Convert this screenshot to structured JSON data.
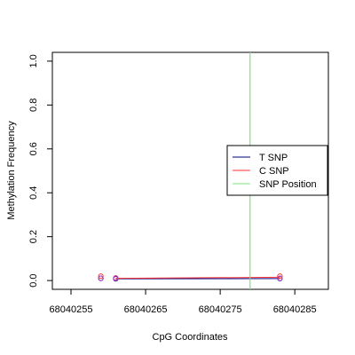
{
  "chart_data": {
    "type": "line",
    "title": "",
    "xlabel": "CpG Coordinates",
    "ylabel": "Methylation Frequency",
    "xlim": [
      68040252.5,
      68040289.5
    ],
    "ylim": [
      -0.04,
      1.04
    ],
    "x_ticks": [
      68040255,
      68040265,
      68040275,
      68040285
    ],
    "x_tick_labels": [
      "68040255",
      "68040265",
      "68040275",
      "68040285"
    ],
    "y_ticks": [
      0.0,
      0.2,
      0.4,
      0.6,
      0.8,
      1.0
    ],
    "y_tick_labels": [
      "0.0",
      "0.2",
      "0.4",
      "0.6",
      "0.8",
      "1.0"
    ],
    "grid": false,
    "legend_position": "right",
    "series": [
      {
        "name": "T SNP",
        "color": "#000080",
        "marker": "circle",
        "x": [
          68040259,
          68040261,
          68040283
        ],
        "y": [
          0.01,
          0.008,
          0.009
        ],
        "line": [
          [
            68040261,
            0.008
          ],
          [
            68040283,
            0.009
          ]
        ]
      },
      {
        "name": "C SNP",
        "color": "#ff3333",
        "marker": "circle",
        "x": [
          68040259,
          68040261,
          68040283
        ],
        "y": [
          0.02,
          0.012,
          0.02
        ],
        "line": [
          [
            68040261,
            0.01
          ],
          [
            68040283,
            0.015
          ]
        ]
      },
      {
        "name": "SNP Position",
        "color": "#7fe07f",
        "vline": 68040279
      }
    ],
    "extra_points": [
      {
        "x": 68040259,
        "y": 0.01,
        "color": "#aa44cc"
      },
      {
        "x": 68040261,
        "y": 0.01,
        "color": "#aa44cc"
      },
      {
        "x": 68040283,
        "y": 0.01,
        "color": "#aa44cc"
      }
    ],
    "legend": [
      "T SNP",
      "C SNP",
      "SNP Position"
    ]
  }
}
